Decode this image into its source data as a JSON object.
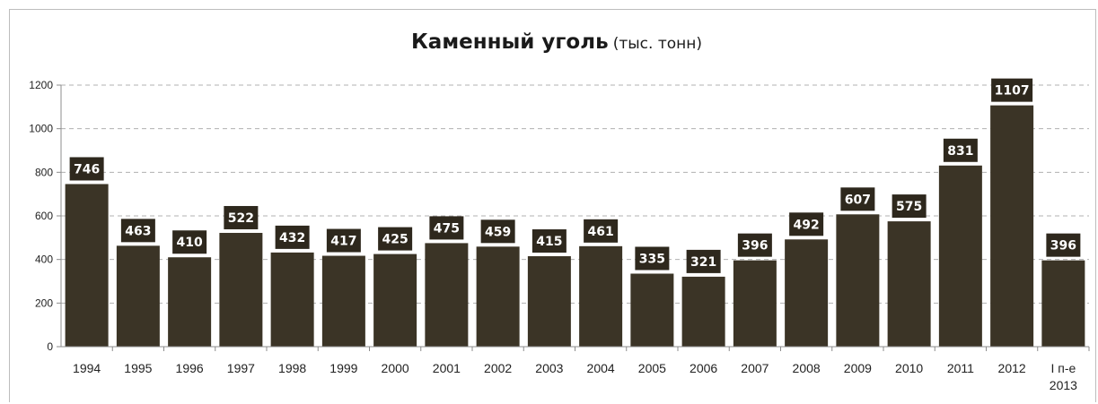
{
  "chart_data": {
    "type": "bar",
    "title": "Каменный уголь",
    "title_unit": "(тыс. тонн)",
    "categories": [
      "1994",
      "1995",
      "1996",
      "1997",
      "1998",
      "1999",
      "2000",
      "2001",
      "2002",
      "2003",
      "2004",
      "2005",
      "2006",
      "2007",
      "2008",
      "2009",
      "2010",
      "2011",
      "2012",
      [
        "I п-е",
        "2013"
      ]
    ],
    "values": [
      746,
      463,
      410,
      522,
      432,
      417,
      425,
      475,
      459,
      415,
      461,
      335,
      321,
      396,
      492,
      607,
      575,
      831,
      1107,
      396
    ],
    "ylim": [
      0,
      1200
    ],
    "yticks": [
      0,
      200,
      400,
      600,
      800,
      1000,
      1200
    ],
    "grid": true,
    "legend": "none",
    "colors": {
      "bar": "#3b3426",
      "label_box": "#2e281d",
      "grid": "#b0b0b0",
      "axis": "#8c8c8c"
    }
  }
}
